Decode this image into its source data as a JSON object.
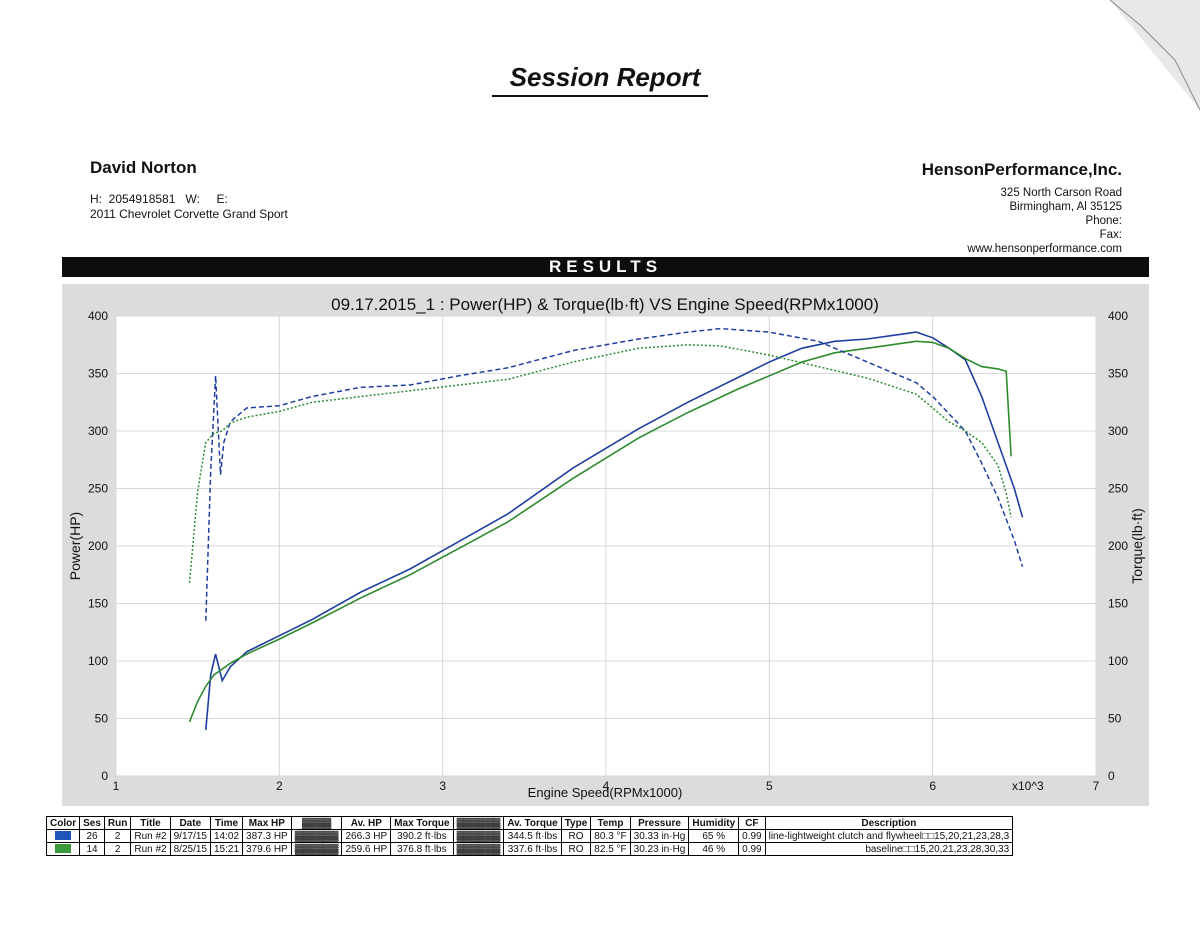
{
  "report": {
    "title": "Session Report",
    "results_label": "RESULTS"
  },
  "customer": {
    "name": "David Norton",
    "phones": "H:  2054918581   W:     E:",
    "vehicle": "2011 Chevrolet Corvette Grand Sport"
  },
  "shop": {
    "name": "HensonPerformance,Inc.",
    "address1": "325 North Carson Road",
    "address2": "Birmingham, Al 35125",
    "phone": "Phone:",
    "fax": "Fax:",
    "website": "www.hensonperformance.com"
  },
  "colors": {
    "run26": "#1f3f9f",
    "run14": "#2e8a2e",
    "frame": "#dcdcdc",
    "plot_bg": "#ffffff"
  },
  "chart_data": {
    "type": "line",
    "title": "09.17.2015_1 : Power(HP) & Torque(lb·ft) VS Engine Speed(RPMx1000)",
    "xlabel": "Engine Speed(RPMx1000)",
    "ylabel_left": "Power(HP)",
    "ylabel_right": "Torque(lb·ft)",
    "x_multiplier_label": "x10^3",
    "xlim": [
      1,
      7
    ],
    "ylim": [
      0,
      400
    ],
    "x_ticks": [
      1,
      2,
      3,
      4,
      5,
      6,
      7
    ],
    "y_ticks": [
      0,
      50,
      100,
      150,
      200,
      250,
      300,
      350,
      400
    ],
    "grid": true,
    "series": [
      {
        "name": "26",
        "kind": "power",
        "color": "#1f3f9f",
        "dash": "solid",
        "x": [
          1.55,
          1.58,
          1.61,
          1.65,
          1.7,
          1.8,
          2.0,
          2.2,
          2.5,
          2.8,
          3.1,
          3.4,
          3.8,
          4.2,
          4.5,
          4.8,
          5.0,
          5.2,
          5.4,
          5.6,
          5.8,
          5.9,
          6.0,
          6.1,
          6.2,
          6.3,
          6.4,
          6.5,
          6.55
        ],
        "y": [
          40,
          88,
          106,
          83,
          95,
          108,
          122,
          136,
          160,
          180,
          204,
          228,
          268,
          302,
          325,
          346,
          360,
          372,
          378,
          380,
          384,
          386,
          381,
          372,
          362,
          330,
          290,
          250,
          225
        ]
      },
      {
        "name": "14",
        "kind": "power",
        "color": "#2e8a2e",
        "dash": "solid",
        "x": [
          1.45,
          1.5,
          1.55,
          1.6,
          1.7,
          1.8,
          2.0,
          2.2,
          2.5,
          2.8,
          3.1,
          3.4,
          3.8,
          4.2,
          4.5,
          4.8,
          5.0,
          5.2,
          5.4,
          5.6,
          5.8,
          5.9,
          6.0,
          6.1,
          6.2,
          6.3,
          6.4,
          6.45,
          6.48
        ],
        "y": [
          47,
          65,
          78,
          88,
          98,
          106,
          119,
          133,
          155,
          175,
          198,
          221,
          259,
          294,
          316,
          336,
          348,
          360,
          368,
          372,
          376,
          378,
          377,
          372,
          363,
          356,
          354,
          352,
          278
        ]
      },
      {
        "name": "26",
        "kind": "torque",
        "color": "#1f3f9f",
        "dash": "dashed",
        "x": [
          1.55,
          1.58,
          1.61,
          1.64,
          1.66,
          1.7,
          1.8,
          2.0,
          2.2,
          2.5,
          2.8,
          3.1,
          3.4,
          3.8,
          4.2,
          4.5,
          4.7,
          5.0,
          5.3,
          5.6,
          5.9,
          6.0,
          6.1,
          6.2,
          6.3,
          6.4,
          6.5,
          6.55
        ],
        "y": [
          135,
          265,
          348,
          262,
          290,
          308,
          320,
          322,
          330,
          338,
          340,
          348,
          355,
          370,
          380,
          386,
          389,
          386,
          378,
          360,
          342,
          330,
          315,
          300,
          272,
          242,
          205,
          182
        ]
      },
      {
        "name": "14",
        "kind": "torque",
        "color": "#2e8a2e",
        "dash": "dotted",
        "x": [
          1.45,
          1.5,
          1.55,
          1.6,
          1.65,
          1.7,
          1.8,
          2.0,
          2.2,
          2.5,
          2.8,
          3.1,
          3.4,
          3.8,
          4.2,
          4.5,
          4.7,
          5.0,
          5.3,
          5.6,
          5.9,
          6.0,
          6.1,
          6.2,
          6.3,
          6.4,
          6.45,
          6.48
        ],
        "y": [
          168,
          248,
          290,
          298,
          300,
          307,
          312,
          317,
          325,
          330,
          335,
          340,
          345,
          360,
          372,
          375,
          374,
          366,
          356,
          346,
          332,
          320,
          308,
          300,
          290,
          270,
          246,
          225
        ]
      }
    ]
  },
  "legend": {
    "headers": [
      "Color",
      "Ses",
      "Run",
      "Title",
      "Date",
      "Time",
      "Max HP",
      "▓▓▓▓",
      "Av. HP",
      "Max Torque",
      "▓▓▓▓▓▓",
      "Av. Torque",
      "Type",
      "Temp",
      "Pressure",
      "Humidity",
      "CF",
      "Description"
    ],
    "rows": [
      {
        "color": "#1f55b8",
        "ses": "26",
        "run": "2",
        "title": "Run #2",
        "date": "9/17/15",
        "time": "14:02",
        "max_hp": "387.3 HP",
        "redacted1": "▓▓▓▓▓▓",
        "av_hp": "266.3 HP",
        "max_torque": "390.2 ft·lbs",
        "redacted2": "▓▓▓▓▓▓",
        "av_torque": "344.5 ft·lbs",
        "type": "RO",
        "temp": "80.3 °F",
        "pressure": "30.33 in·Hg",
        "humidity": "65 %",
        "cf": "0.99",
        "description": "line-lightweight clutch and flywheel□□15,20,21,23,28,3"
      },
      {
        "color": "#3a9a3a",
        "ses": "14",
        "run": "2",
        "title": "Run #2",
        "date": "8/25/15",
        "time": "15:21",
        "max_hp": "379.6 HP",
        "redacted1": "▓▓▓▓▓▓",
        "av_hp": "259.6 HP",
        "max_torque": "376.8 ft·lbs",
        "redacted2": "▓▓▓▓▓▓",
        "av_torque": "337.6 ft·lbs",
        "type": "RO",
        "temp": "82.5 °F",
        "pressure": "30.23 in·Hg",
        "humidity": "46 %",
        "cf": "0.99",
        "description": "baseline□□15,20,21,23,28,30,33"
      }
    ]
  }
}
